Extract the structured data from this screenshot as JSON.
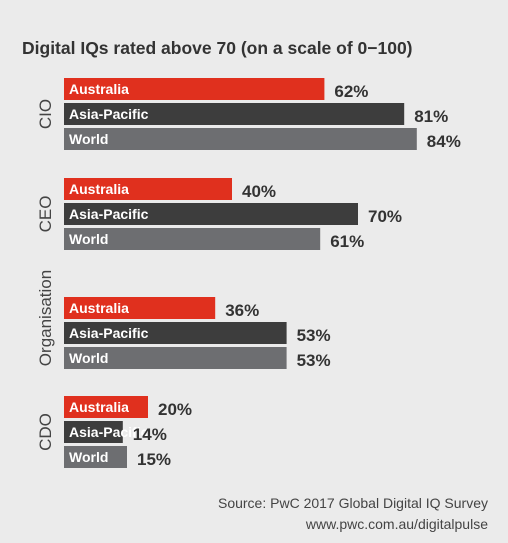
{
  "chart_data": {
    "type": "bar",
    "orientation": "horizontal",
    "title": "Digital IQs rated above 70 (on a scale of 0−100)",
    "ylabel": "Organisation",
    "value_suffix": "%",
    "xlim": [
      0,
      100
    ],
    "grid": false,
    "series_names": [
      "Australia",
      "Asia-Pacific",
      "World"
    ],
    "colors": {
      "Australia": "#e0301e",
      "Asia-Pacific": "#3d3d3d",
      "World": "#6d6e71"
    },
    "groups": [
      {
        "label": "CIO",
        "values": [
          62,
          81,
          84
        ]
      },
      {
        "label": "CEO",
        "values": [
          40,
          70,
          61
        ]
      },
      {
        "label": "",
        "values": [
          36,
          53,
          53
        ]
      },
      {
        "label": "CDO",
        "values": [
          20,
          14,
          15
        ]
      }
    ]
  },
  "source": {
    "line1": "Source: PwC 2017 Global Digital IQ Survey",
    "line2": "www.pwc.com.au/digitalpulse"
  }
}
